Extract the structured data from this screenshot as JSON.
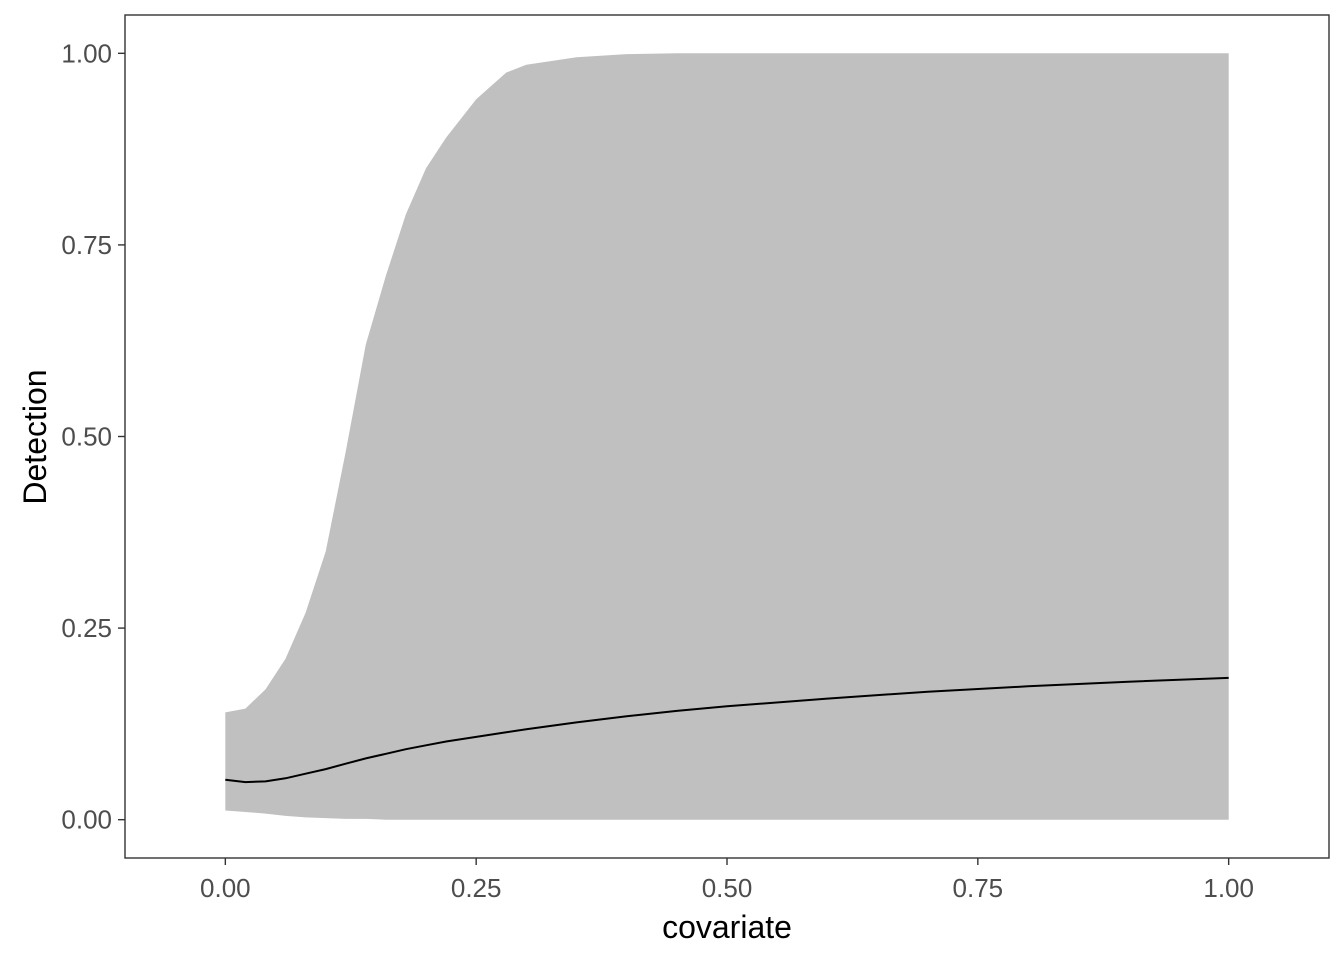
{
  "chart_data": {
    "type": "area",
    "xlabel": "covariate",
    "ylabel": "Detection",
    "xlim": [
      -0.1,
      1.1
    ],
    "ylim": [
      -0.05,
      1.05
    ],
    "x_ticks": [
      "0.00",
      "0.25",
      "0.50",
      "0.75",
      "1.00"
    ],
    "y_ticks": [
      "0.00",
      "0.25",
      "0.50",
      "0.75",
      "1.00"
    ],
    "grid": false,
    "legend": "none",
    "ribbon_color": "#c0c0c0",
    "line_color": "#000000",
    "x": [
      0.0,
      0.02,
      0.04,
      0.06,
      0.08,
      0.1,
      0.12,
      0.14,
      0.16,
      0.18,
      0.2,
      0.22,
      0.25,
      0.28,
      0.3,
      0.35,
      0.4,
      0.45,
      0.5,
      0.6,
      0.7,
      0.8,
      0.9,
      1.0
    ],
    "lower": [
      0.012,
      0.01,
      0.008,
      0.005,
      0.003,
      0.002,
      0.001,
      0.001,
      0.0,
      0.0,
      0.0,
      0.0,
      0.0,
      0.0,
      0.0,
      0.0,
      0.0,
      0.0,
      0.0,
      0.0,
      0.0,
      0.0,
      0.0,
      0.0
    ],
    "upper": [
      0.14,
      0.145,
      0.17,
      0.21,
      0.27,
      0.35,
      0.48,
      0.62,
      0.71,
      0.79,
      0.85,
      0.89,
      0.94,
      0.975,
      0.985,
      0.995,
      0.999,
      1.0,
      1.0,
      1.0,
      1.0,
      1.0,
      1.0,
      1.0
    ],
    "estimate": [
      0.052,
      0.049,
      0.05,
      0.054,
      0.06,
      0.066,
      0.073,
      0.08,
      0.086,
      0.092,
      0.097,
      0.102,
      0.108,
      0.114,
      0.118,
      0.127,
      0.135,
      0.142,
      0.148,
      0.158,
      0.167,
      0.174,
      0.18,
      0.185
    ]
  }
}
